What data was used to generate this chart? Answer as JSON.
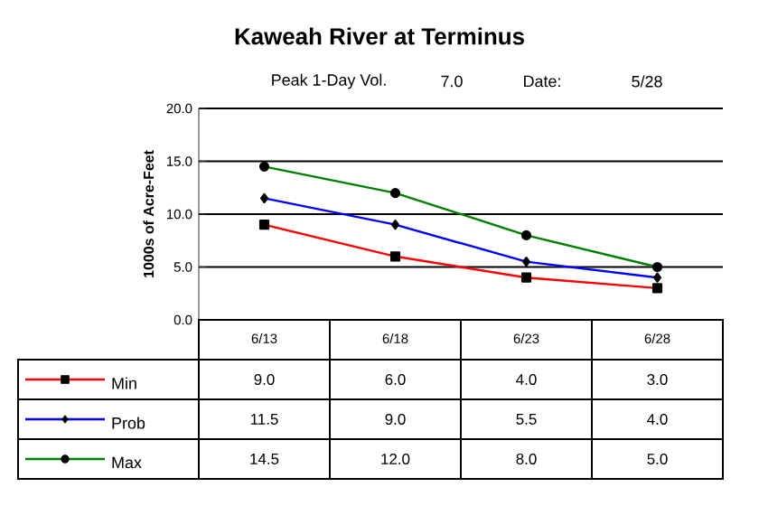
{
  "chart_data": {
    "type": "line",
    "title": "Kaweah River at Terminus",
    "annotations": [
      "Peak 1-Day Vol.",
      "7.0",
      "Date:",
      "5/28"
    ],
    "ylabel": "1000s of Acre-Feet",
    "categories": [
      "6/13",
      "6/18",
      "6/23",
      "6/28"
    ],
    "series": [
      {
        "name": "Min",
        "color": "#ff0000",
        "marker": "square",
        "values": [
          9.0,
          6.0,
          4.0,
          3.0
        ],
        "value_labels": [
          "9.0",
          "6.0",
          "4.0",
          "3.0"
        ]
      },
      {
        "name": "Prob",
        "color": "#0000ff",
        "marker": "diamond",
        "values": [
          11.5,
          9.0,
          5.5,
          4.0
        ],
        "value_labels": [
          "11.5",
          "9.0",
          "5.5",
          "4.0"
        ]
      },
      {
        "name": "Max",
        "color": "#008000",
        "marker": "circle",
        "values": [
          14.5,
          12.0,
          8.0,
          5.0
        ],
        "value_labels": [
          "14.5",
          "12.0",
          "8.0",
          "5.0"
        ]
      }
    ],
    "ylim": [
      0,
      20
    ],
    "yticks": [
      {
        "value": 0,
        "label": "0.0"
      },
      {
        "value": 5,
        "label": "5.0"
      },
      {
        "value": 10,
        "label": "10.0"
      },
      {
        "value": 15,
        "label": "15.0"
      },
      {
        "value": 20,
        "label": "20.0"
      }
    ],
    "grid": "y",
    "legend": "bottom",
    "line_style": "solid"
  }
}
